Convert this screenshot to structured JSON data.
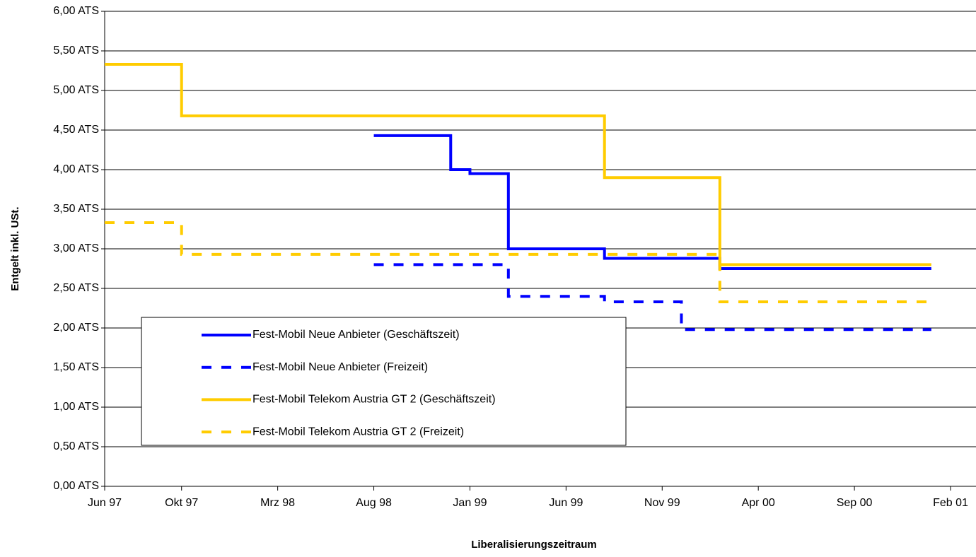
{
  "chart_data": {
    "type": "line",
    "step": "post",
    "y_label": "Entgelt inkl. USt.",
    "x_label": "Liberalisierungszeitraum",
    "xlim": [
      "1997-06",
      "2001-02"
    ],
    "xticks": [
      {
        "value": "1997-06",
        "label": "Jun 97"
      },
      {
        "value": "1997-10",
        "label": "Okt 97"
      },
      {
        "value": "1998-03",
        "label": "Mrz 98"
      },
      {
        "value": "1998-08",
        "label": "Aug 98"
      },
      {
        "value": "1999-01",
        "label": "Jan 99"
      },
      {
        "value": "1999-06",
        "label": "Jun 99"
      },
      {
        "value": "1999-11",
        "label": "Nov 99"
      },
      {
        "value": "2000-04",
        "label": "Apr 00"
      },
      {
        "value": "2000-09",
        "label": "Sep 00"
      },
      {
        "value": "2001-02",
        "label": "Feb 01"
      }
    ],
    "ylim": [
      0,
      6
    ],
    "yticks": [
      {
        "value": 0,
        "label": "0,00 ATS"
      },
      {
        "value": 0.5,
        "label": "0,50 ATS"
      },
      {
        "value": 1,
        "label": "1,00 ATS"
      },
      {
        "value": 1.5,
        "label": "1,50 ATS"
      },
      {
        "value": 2,
        "label": "2,00 ATS"
      },
      {
        "value": 2.5,
        "label": "2,50 ATS"
      },
      {
        "value": 3,
        "label": "3,00 ATS"
      },
      {
        "value": 3.5,
        "label": "3,50 ATS"
      },
      {
        "value": 4,
        "label": "4,00 ATS"
      },
      {
        "value": 4.5,
        "label": "4,50 ATS"
      },
      {
        "value": 5,
        "label": "5,00 ATS"
      },
      {
        "value": 5.5,
        "label": "5,50 ATS"
      },
      {
        "value": 6,
        "label": "6,00 ATS"
      }
    ],
    "grid": true,
    "series": [
      {
        "name": "Fest-Mobil Neue Anbieter (Geschäftszeit)",
        "color": "#0000ff",
        "dashed": false,
        "x": [
          "1998-08",
          "1998-12",
          "1999-01",
          "1999-03",
          "1999-08",
          "2000-02",
          "2001-01"
        ],
        "values": [
          4.43,
          4.0,
          3.95,
          3.0,
          2.88,
          2.75,
          2.75
        ]
      },
      {
        "name": "Fest-Mobil Neue Anbieter (Freizeit)",
        "color": "#0000ff",
        "dashed": true,
        "x": [
          "1998-08",
          "1999-03",
          "1999-08",
          "1999-12",
          "2001-01"
        ],
        "values": [
          2.8,
          2.4,
          2.33,
          1.98,
          1.98
        ]
      },
      {
        "name": "Fest-Mobil Telekom Austria GT 2 (Geschäftszeit)",
        "color": "#ffcc00",
        "dashed": false,
        "x": [
          "1997-06",
          "1997-10",
          "1999-08",
          "2000-02",
          "2001-01"
        ],
        "values": [
          5.33,
          4.68,
          3.9,
          2.8,
          2.8
        ]
      },
      {
        "name": "Fest-Mobil Telekom Austria GT 2  (Freizeit)",
        "color": "#ffcc00",
        "dashed": true,
        "x": [
          "1997-06",
          "1997-10",
          "2000-02",
          "2001-01"
        ],
        "values": [
          3.33,
          2.93,
          2.33,
          2.33
        ]
      }
    ]
  }
}
